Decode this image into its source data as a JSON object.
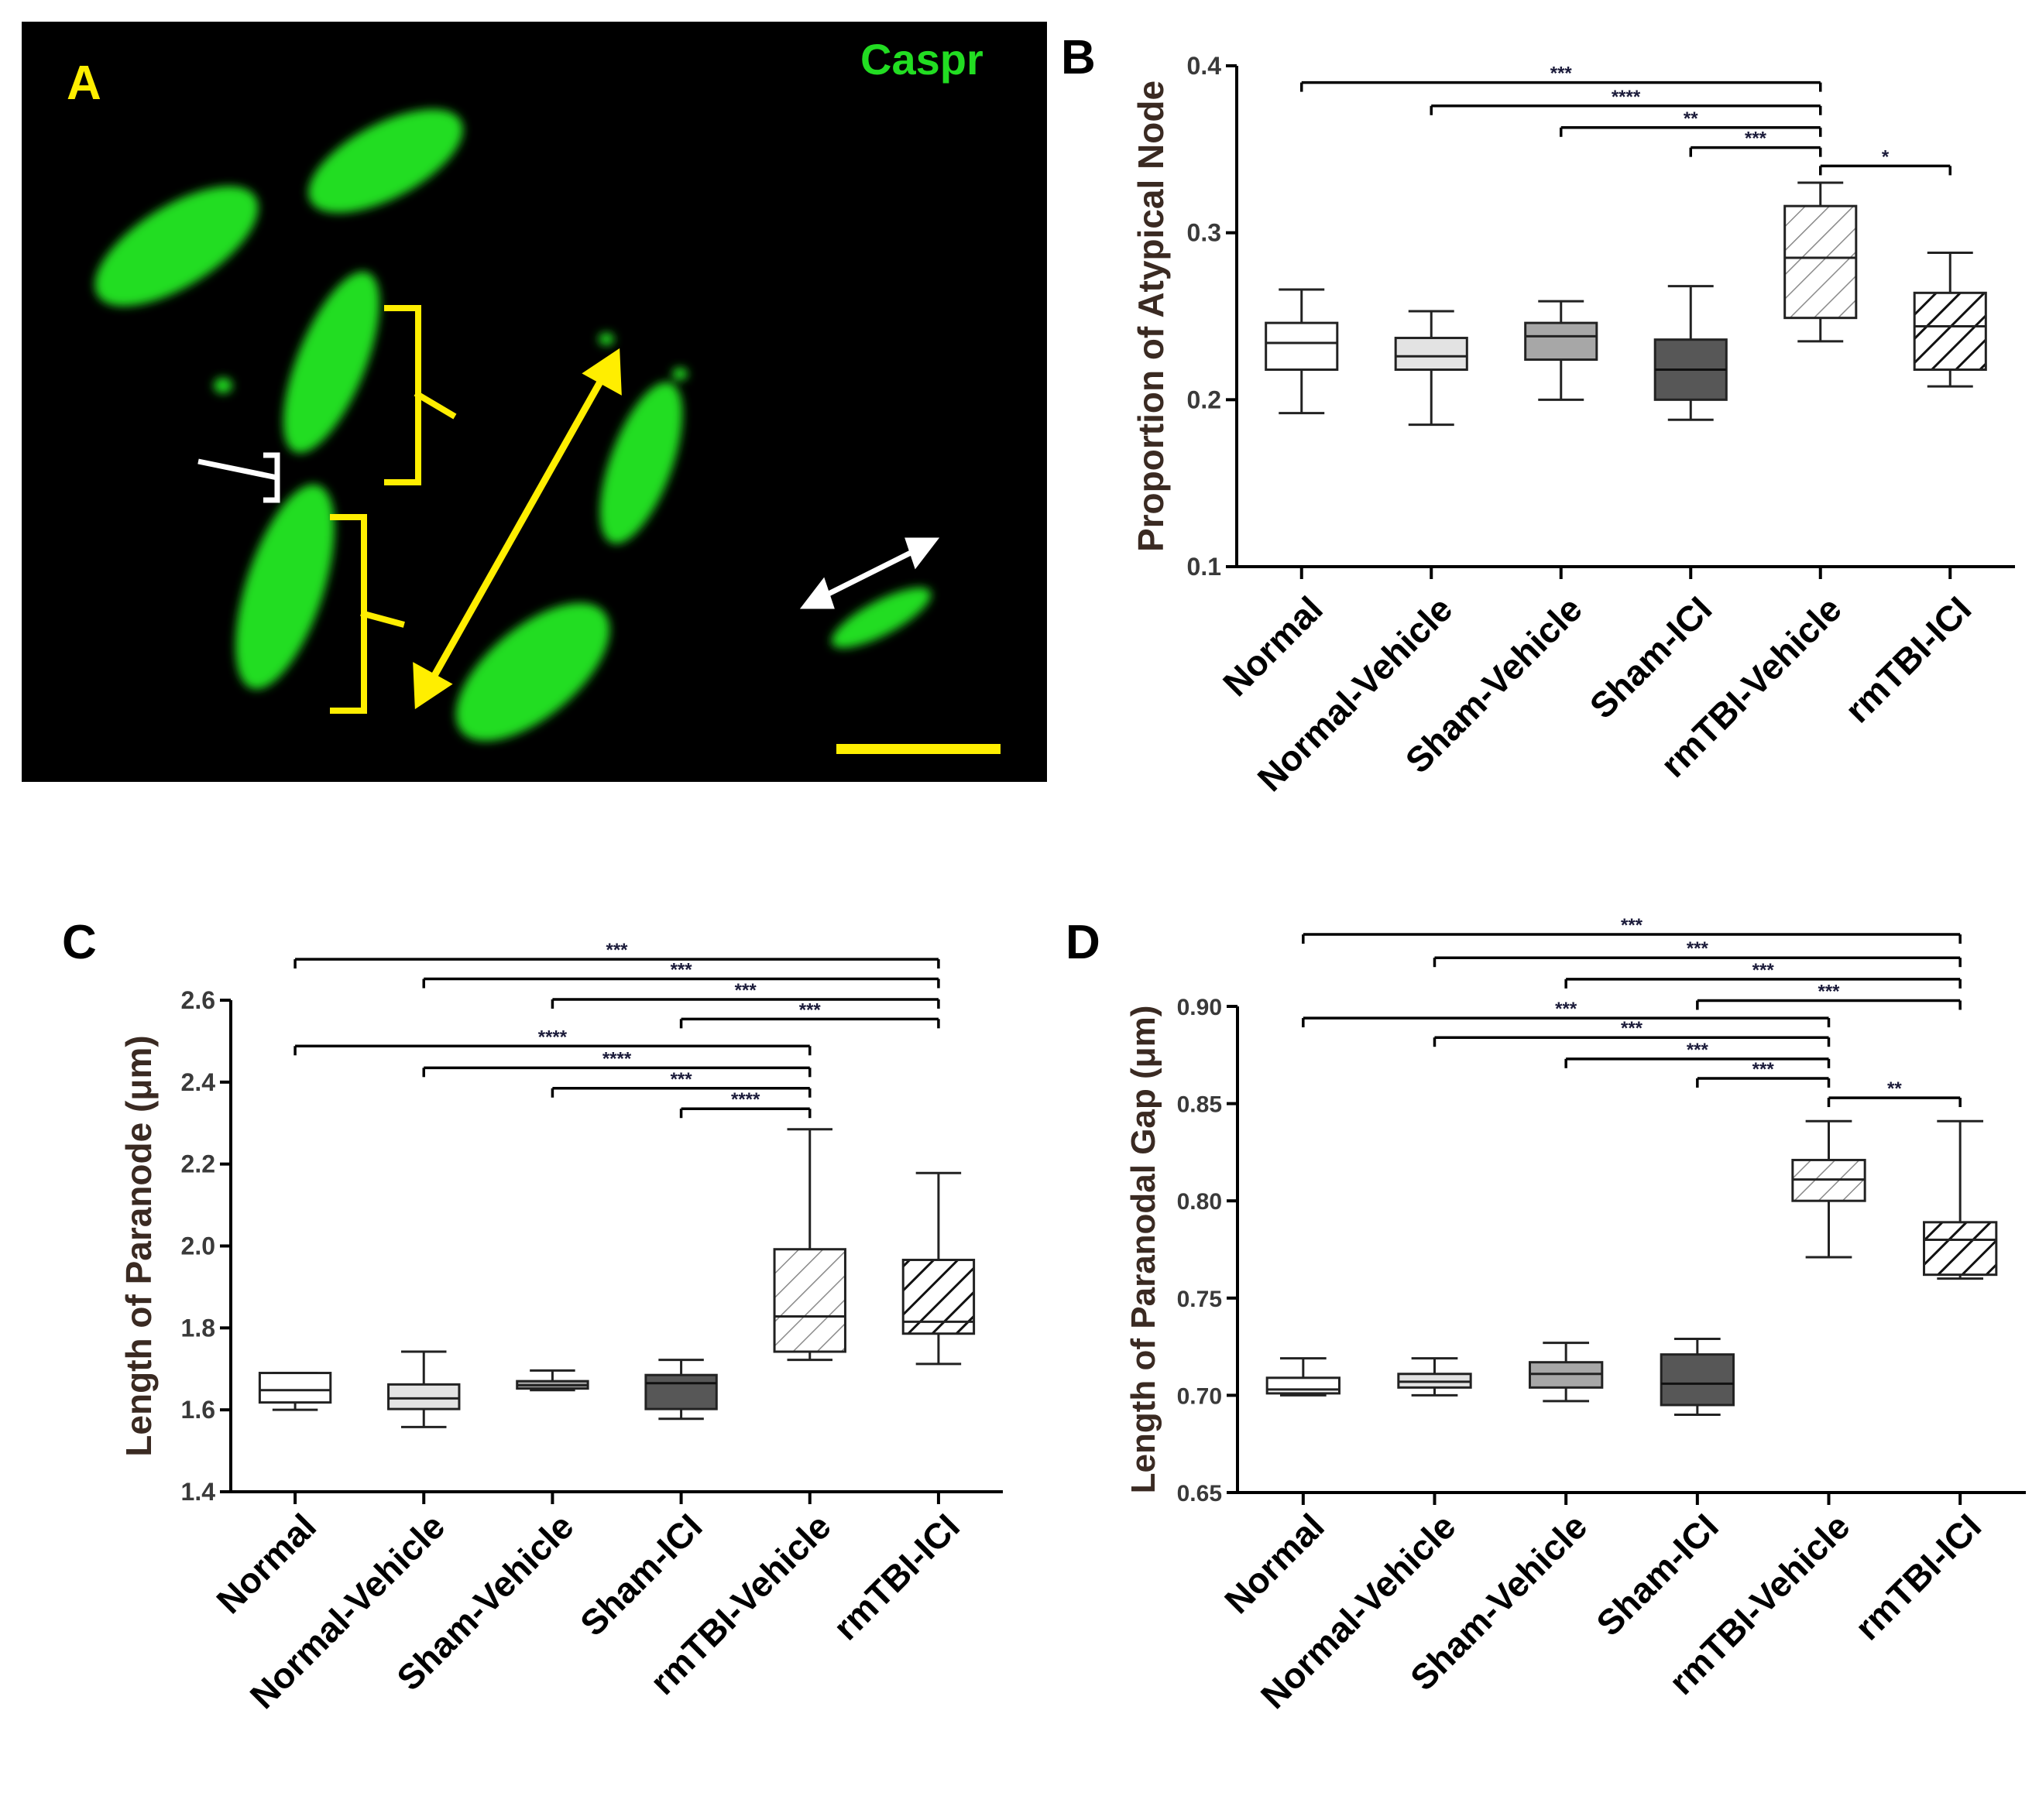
{
  "colors": {
    "caspr_green": "#22dd22",
    "marker_yellow": "#ffee00",
    "marker_white": "#ffffff",
    "axis": "#000000",
    "label_dark": "#3a2a22"
  },
  "panel_a": {
    "letter": "A",
    "stain_label": "Caspr"
  },
  "chart_data": [
    {
      "panel": "B",
      "type": "box",
      "ylabel": "Proportion of Atypical Node",
      "ylim": [
        0.1,
        0.4
      ],
      "yticks": [
        "0.1",
        "0.2",
        "0.3",
        "0.4"
      ],
      "categories": [
        "Normal",
        "Normal-Vehicle",
        "Sham-Vehicle",
        "Sham-ICI",
        "rmTBI-Vehicle",
        "rmTBI-ICI"
      ],
      "boxes": [
        {
          "min": 0.192,
          "q1": 0.218,
          "median": 0.234,
          "q3": 0.246,
          "max": 0.266,
          "fill": "#ffffff",
          "hatch": "none"
        },
        {
          "min": 0.185,
          "q1": 0.218,
          "median": 0.226,
          "q3": 0.237,
          "max": 0.253,
          "fill": "#e3e3e3",
          "hatch": "none"
        },
        {
          "min": 0.2,
          "q1": 0.224,
          "median": 0.238,
          "q3": 0.246,
          "max": 0.259,
          "fill": "#a7a7a7",
          "hatch": "none"
        },
        {
          "min": 0.188,
          "q1": 0.2,
          "median": 0.218,
          "q3": 0.236,
          "max": 0.268,
          "fill": "#575757",
          "hatch": "none"
        },
        {
          "min": 0.235,
          "q1": 0.249,
          "median": 0.285,
          "q3": 0.316,
          "max": 0.33,
          "fill": "#ffffff",
          "hatch": "light"
        },
        {
          "min": 0.208,
          "q1": 0.218,
          "median": 0.244,
          "q3": 0.264,
          "max": 0.288,
          "fill": "#ffffff",
          "hatch": "dark"
        }
      ],
      "comparisons": [
        {
          "from": 0,
          "to": 4,
          "y": 0.39,
          "label": "***"
        },
        {
          "from": 1,
          "to": 4,
          "y": 0.376,
          "label": "****"
        },
        {
          "from": 2,
          "to": 4,
          "y": 0.363,
          "label": "**"
        },
        {
          "from": 3,
          "to": 4,
          "y": 0.351,
          "label": "***"
        },
        {
          "from": 4,
          "to": 5,
          "y": 0.34,
          "label": "*"
        }
      ]
    },
    {
      "panel": "C",
      "type": "box",
      "ylabel": "Length of Paranode (μm)",
      "ylim": [
        1.4,
        2.6
      ],
      "yticks": [
        "1.4",
        "1.6",
        "1.8",
        "2.0",
        "2.2",
        "2.4",
        "2.6"
      ],
      "categories": [
        "Normal",
        "Normal-Vehicle",
        "Sham-Vehicle",
        "Sham-ICI",
        "rmTBI-Vehicle",
        "rmTBI-ICI"
      ],
      "boxes": [
        {
          "min": 1.6,
          "q1": 1.618,
          "median": 1.648,
          "q3": 1.69,
          "max": 1.69,
          "fill": "#ffffff",
          "hatch": "none"
        },
        {
          "min": 1.558,
          "q1": 1.602,
          "median": 1.628,
          "q3": 1.662,
          "max": 1.742,
          "fill": "#e3e3e3",
          "hatch": "none"
        },
        {
          "min": 1.648,
          "q1": 1.652,
          "median": 1.66,
          "q3": 1.67,
          "max": 1.696,
          "fill": "#a7a7a7",
          "hatch": "none"
        },
        {
          "min": 1.578,
          "q1": 1.602,
          "median": 1.665,
          "q3": 1.685,
          "max": 1.722,
          "fill": "#575757",
          "hatch": "none"
        },
        {
          "min": 1.722,
          "q1": 1.742,
          "median": 1.828,
          "q3": 1.992,
          "max": 2.285,
          "fill": "#ffffff",
          "hatch": "light"
        },
        {
          "min": 1.712,
          "q1": 1.786,
          "median": 1.815,
          "q3": 1.966,
          "max": 2.178,
          "fill": "#ffffff",
          "hatch": "dark"
        }
      ],
      "comparisons": [
        {
          "from": 0,
          "to": 5,
          "y": 2.7,
          "label": "***"
        },
        {
          "from": 1,
          "to": 5,
          "y": 2.652,
          "label": "***"
        },
        {
          "from": 2,
          "to": 5,
          "y": 2.602,
          "label": "***"
        },
        {
          "from": 3,
          "to": 5,
          "y": 2.554,
          "label": "***"
        },
        {
          "from": 0,
          "to": 4,
          "y": 2.488,
          "label": "****"
        },
        {
          "from": 1,
          "to": 4,
          "y": 2.435,
          "label": "****"
        },
        {
          "from": 2,
          "to": 4,
          "y": 2.385,
          "label": "***"
        },
        {
          "from": 3,
          "to": 4,
          "y": 2.335,
          "label": "****"
        }
      ]
    },
    {
      "panel": "D",
      "type": "box",
      "ylabel": "Length of Paranodal Gap (μm)",
      "ylim": [
        0.65,
        0.9
      ],
      "yticks": [
        "0.65",
        "0.70",
        "0.75",
        "0.80",
        "0.85",
        "0.90"
      ],
      "categories": [
        "Normal",
        "Normal-Vehicle",
        "Sham-Vehicle",
        "Sham-ICI",
        "rmTBI-Vehicle",
        "rmTBI-ICI"
      ],
      "boxes": [
        {
          "min": 0.7,
          "q1": 0.701,
          "median": 0.703,
          "q3": 0.709,
          "max": 0.719,
          "fill": "#ffffff",
          "hatch": "none"
        },
        {
          "min": 0.7,
          "q1": 0.704,
          "median": 0.707,
          "q3": 0.711,
          "max": 0.719,
          "fill": "#e3e3e3",
          "hatch": "none"
        },
        {
          "min": 0.697,
          "q1": 0.704,
          "median": 0.711,
          "q3": 0.717,
          "max": 0.727,
          "fill": "#a7a7a7",
          "hatch": "none"
        },
        {
          "min": 0.69,
          "q1": 0.695,
          "median": 0.706,
          "q3": 0.721,
          "max": 0.729,
          "fill": "#575757",
          "hatch": "none"
        },
        {
          "min": 0.771,
          "q1": 0.8,
          "median": 0.811,
          "q3": 0.821,
          "max": 0.841,
          "fill": "#ffffff",
          "hatch": "light"
        },
        {
          "min": 0.76,
          "q1": 0.762,
          "median": 0.78,
          "q3": 0.789,
          "max": 0.841,
          "fill": "#ffffff",
          "hatch": "dark"
        }
      ],
      "comparisons": [
        {
          "from": 0,
          "to": 5,
          "y": 0.937,
          "label": "***"
        },
        {
          "from": 1,
          "to": 5,
          "y": 0.925,
          "label": "***"
        },
        {
          "from": 2,
          "to": 5,
          "y": 0.914,
          "label": "***"
        },
        {
          "from": 3,
          "to": 5,
          "y": 0.903,
          "label": "***"
        },
        {
          "from": 0,
          "to": 4,
          "y": 0.894,
          "label": "***"
        },
        {
          "from": 1,
          "to": 4,
          "y": 0.884,
          "label": "***"
        },
        {
          "from": 2,
          "to": 4,
          "y": 0.873,
          "label": "***"
        },
        {
          "from": 3,
          "to": 4,
          "y": 0.863,
          "label": "***"
        },
        {
          "from": 4,
          "to": 5,
          "y": 0.853,
          "label": "**"
        }
      ]
    }
  ]
}
